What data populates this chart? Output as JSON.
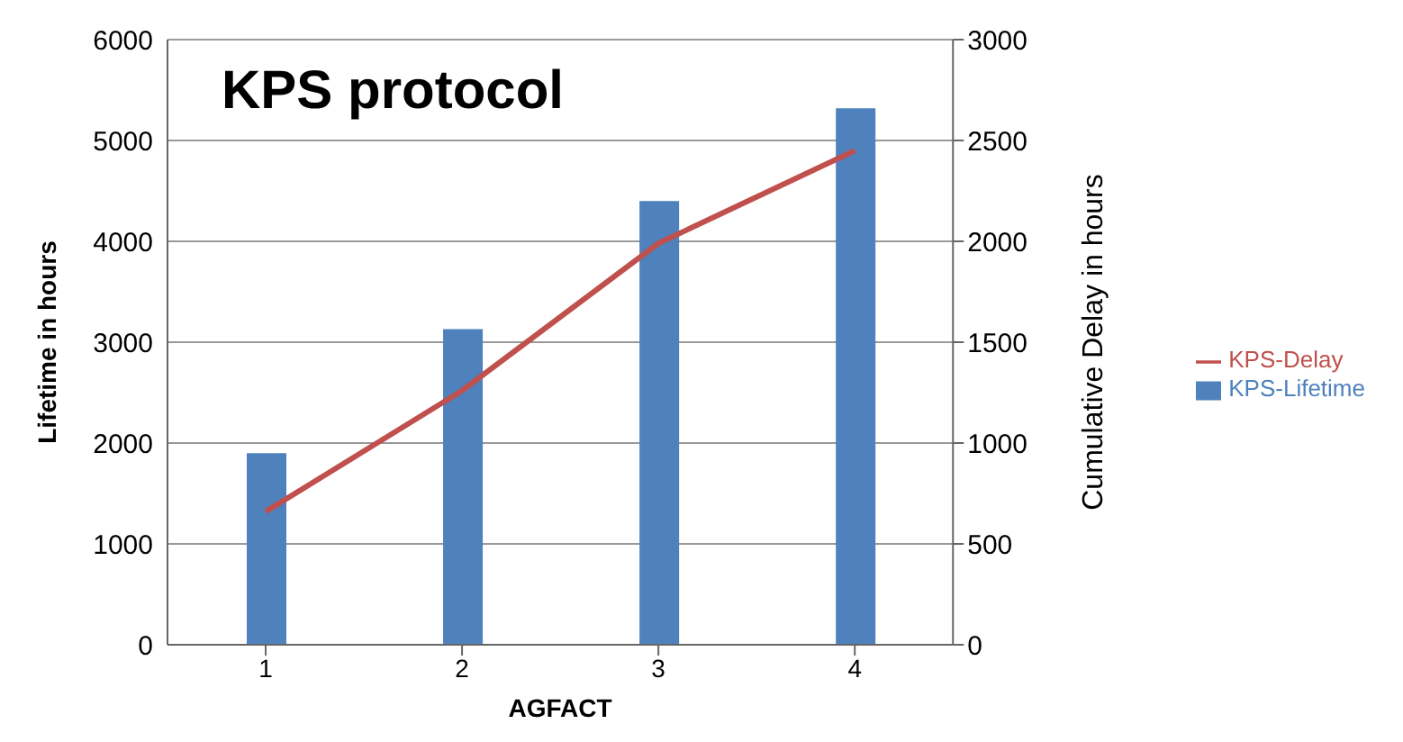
{
  "chart_data": {
    "type": "bar",
    "title": "KPS protocol",
    "xlabel": "AGFACT",
    "ylabel": "Lifetime in hours",
    "y2label": "Cumulative Delay in hours",
    "categories": [
      "1",
      "2",
      "3",
      "4"
    ],
    "series": [
      {
        "name": "KPS-Lifetime",
        "color": "#4f81bd",
        "values": [
          1900,
          3130,
          4400,
          5320
        ]
      },
      {
        "name": "KPS-Delay",
        "type": "line",
        "axis": "y2",
        "color": "#c0504d",
        "values": [
          660,
          1260,
          1990,
          2450
        ]
      }
    ],
    "ylim": [
      0,
      6000
    ],
    "yticks": [
      0,
      1000,
      2000,
      3000,
      4000,
      5000,
      6000
    ],
    "y2lim": [
      0,
      3000
    ],
    "y2ticks": [
      0,
      500,
      1000,
      1500,
      2000,
      2500,
      3000
    ],
    "grid": "y",
    "legend": "right",
    "marker": "none"
  }
}
